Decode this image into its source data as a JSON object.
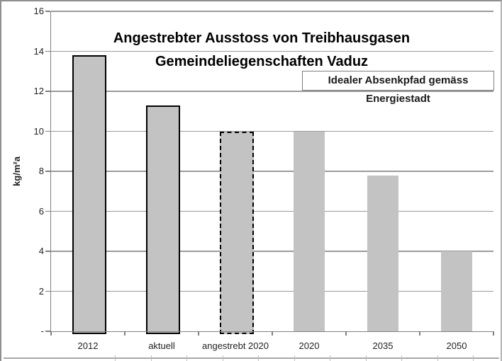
{
  "chart_data": {
    "type": "bar",
    "title_lines": [
      "Angestrebter Ausstoss von Treibhausgasen",
      "Gemeindeliegenschaften Vaduz"
    ],
    "annotation": "Idealer Absenkpfad gemäss Energiestadt",
    "ylabel": "kg/m²a",
    "categories": [
      "2012",
      "aktuell",
      "angestrebt 2020",
      "2020",
      "2035",
      "2050"
    ],
    "values": [
      13.8,
      11.3,
      10,
      10,
      7.8,
      4
    ],
    "bar_styles": [
      "solid",
      "solid",
      "dashed",
      "none",
      "none",
      "none"
    ],
    "ylim": [
      0,
      16
    ],
    "ytick_step": 2,
    "ytick_labels": [
      "16",
      "14",
      "12",
      "10",
      "8",
      "6",
      "4",
      "2",
      "-"
    ],
    "grid": true,
    "legend": "none",
    "colors": {
      "bar_fill": "#c3c3c3",
      "bar_border": "#000000",
      "gridline": "#9b9b9b",
      "axis": "#808080",
      "text": "#1f1f1f",
      "frame_border": "#8f8f8f",
      "annotation_border": "#7f7f7f"
    }
  }
}
